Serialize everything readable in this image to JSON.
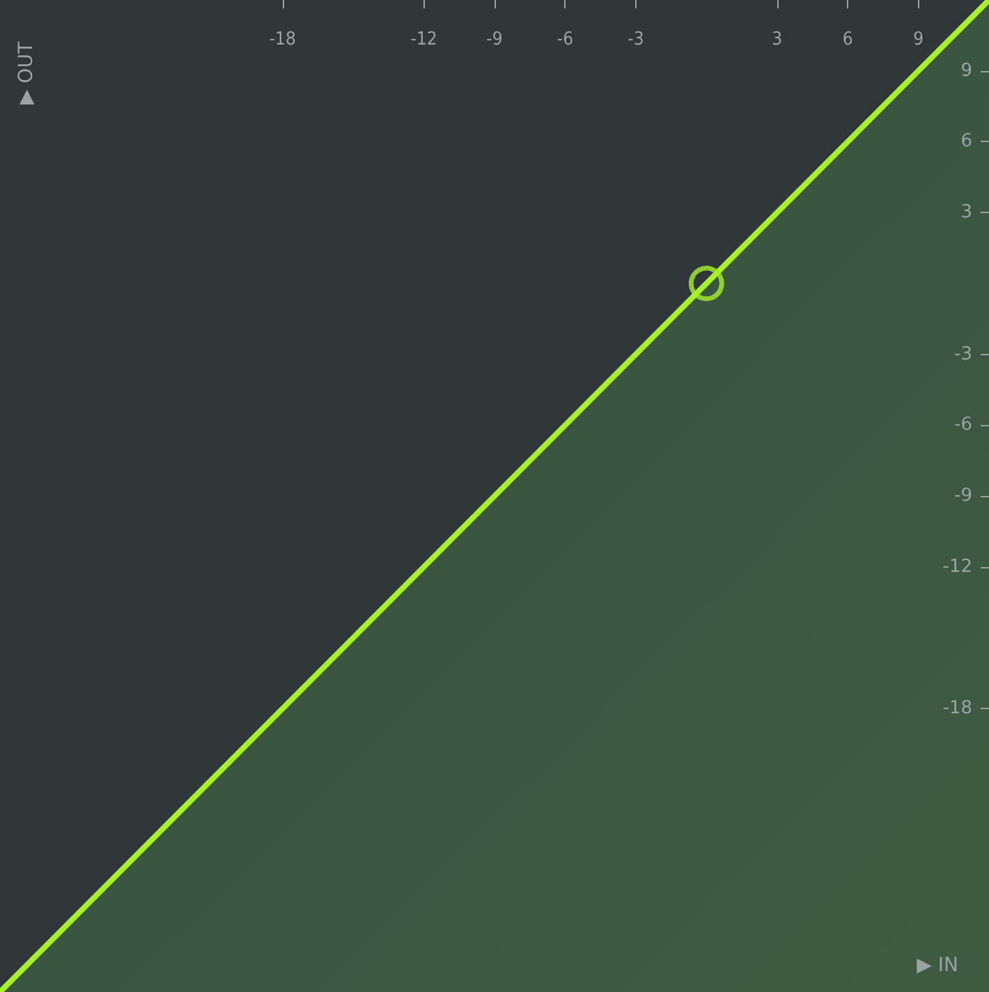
{
  "chart_data": {
    "type": "line",
    "xlabel": "▶ IN",
    "ylabel": "▶ OUT",
    "xlim": [
      -30,
      12
    ],
    "ylim": [
      -30,
      12
    ],
    "xticks": [
      -18,
      -12,
      -9,
      -6,
      -3,
      3,
      6,
      9
    ],
    "yticks": [
      -18,
      -12,
      -9,
      -6,
      -3,
      3,
      6,
      9
    ],
    "grid": false,
    "marker": "none",
    "line_style": "solid",
    "series": [
      {
        "type": "line",
        "color": "#a8f02a",
        "x": [
          -30,
          0,
          12
        ],
        "values": [
          -30,
          0,
          12
        ]
      },
      {
        "type": "scatter",
        "marker": "circle",
        "color": "#a8f02a",
        "x": [
          0
        ],
        "values": [
          0
        ]
      }
    ]
  }
}
